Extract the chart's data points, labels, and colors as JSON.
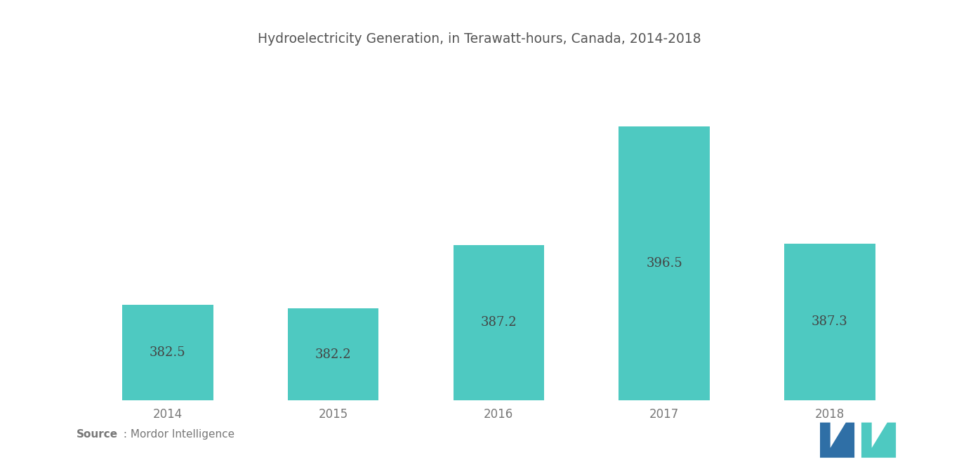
{
  "title": "Hydroelectricity Generation, in Terawatt-hours, Canada, 2014-2018",
  "categories": [
    "2014",
    "2015",
    "2016",
    "2017",
    "2018"
  ],
  "values": [
    382.5,
    382.2,
    387.2,
    396.5,
    387.3
  ],
  "bar_color": "#4ec9c1",
  "bar_edge_color": "none",
  "label_color": "#444444",
  "title_color": "#555555",
  "tick_color": "#777777",
  "background_color": "#ffffff",
  "ylim_min": 375,
  "ylim_max": 401,
  "bar_width": 0.55,
  "title_fontsize": 13.5,
  "label_fontsize": 13,
  "tick_fontsize": 12,
  "source_bold": "Source",
  "source_text": " : Mordor Intelligence",
  "source_fontsize": 11,
  "logo_left_color": "#2f6fa6",
  "logo_right_color": "#4ec9c1"
}
